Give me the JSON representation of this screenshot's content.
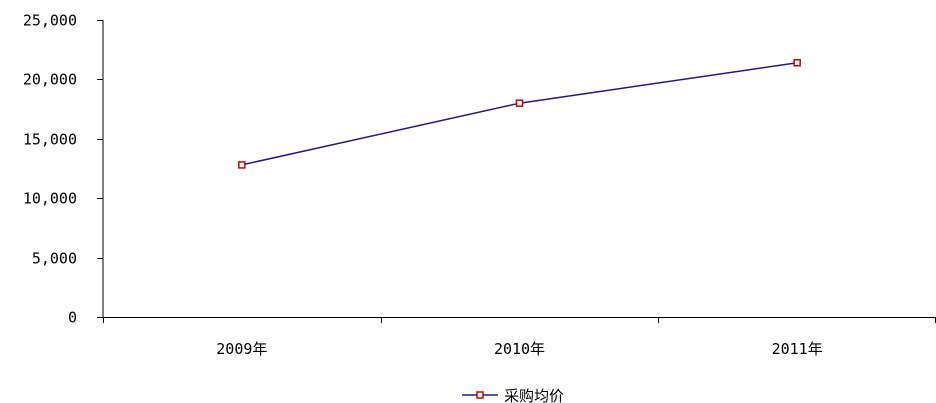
{
  "chart_data": {
    "type": "line",
    "categories": [
      "2009年",
      "2010年",
      "2011年"
    ],
    "series": [
      {
        "name": "采购均价",
        "values": [
          12800,
          18000,
          21400
        ],
        "color": "#1f1a8c",
        "marker_color": "#cc0000"
      }
    ],
    "yticks": [
      "0",
      "5,000",
      "10,000",
      "15,000",
      "20,000",
      "25,000"
    ],
    "ylim": [
      0,
      25000
    ],
    "grid": false,
    "legend": "bottom-center",
    "title": "",
    "xlabel": "",
    "ylabel": ""
  }
}
